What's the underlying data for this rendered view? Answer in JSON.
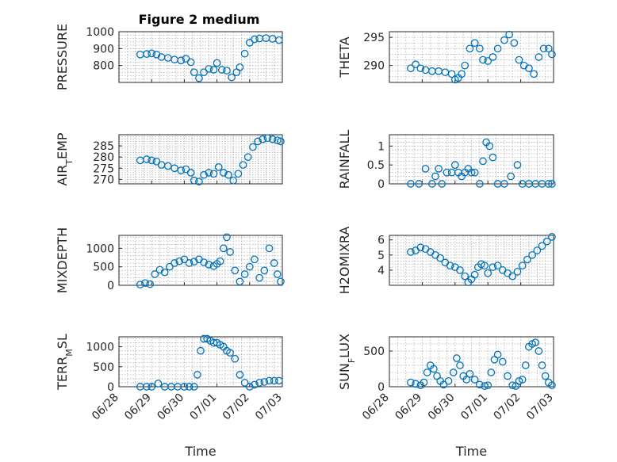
{
  "figure_title": "Figure 2 medium",
  "shared_xlabel": "Time",
  "x_ticks": [
    "06/28",
    "06/29",
    "06/30",
    "07/01",
    "07/02",
    "07/03"
  ],
  "marker_color": "#0072BD",
  "chart_data": [
    {
      "type": "scatter",
      "ylabel": "PRESSURE",
      "title": "Figure 2 medium",
      "xlim": [
        0,
        5
      ],
      "ylim": [
        700,
        1000
      ],
      "yticks": [
        800,
        900,
        1000
      ],
      "x": [
        0.65,
        0.85,
        1.0,
        1.15,
        1.3,
        1.5,
        1.7,
        1.9,
        2.05,
        2.2,
        2.3,
        2.45,
        2.6,
        2.75,
        2.9,
        3.0,
        3.15,
        3.3,
        3.45,
        3.6,
        3.7,
        3.85,
        4.0,
        4.15,
        4.3,
        4.5,
        4.7,
        4.9
      ],
      "y": [
        865,
        868,
        872,
        865,
        850,
        845,
        835,
        830,
        840,
        820,
        760,
        725,
        760,
        780,
        775,
        815,
        775,
        770,
        730,
        760,
        790,
        870,
        935,
        955,
        960,
        962,
        958,
        950
      ]
    },
    {
      "type": "scatter",
      "ylabel": "THETA",
      "xlim": [
        0,
        5
      ],
      "ylim": [
        287,
        296
      ],
      "yticks": [
        290,
        295
      ],
      "x": [
        0.65,
        0.8,
        0.95,
        1.1,
        1.3,
        1.5,
        1.7,
        1.9,
        2.0,
        2.1,
        2.2,
        2.3,
        2.45,
        2.6,
        2.75,
        2.85,
        3.0,
        3.15,
        3.3,
        3.5,
        3.65,
        3.8,
        3.95,
        4.1,
        4.25,
        4.4,
        4.55,
        4.7,
        4.85,
        4.95
      ],
      "y": [
        289.5,
        290.2,
        289.5,
        289.2,
        289.0,
        289.0,
        288.8,
        288.5,
        287.5,
        287.8,
        288.5,
        290.0,
        293.0,
        294.0,
        293.0,
        291.0,
        290.8,
        291.5,
        293.0,
        294.5,
        295.5,
        294.0,
        291.0,
        290.0,
        289.5,
        288.5,
        291.5,
        293.0,
        293.0,
        292.0
      ]
    },
    {
      "type": "scatter",
      "ylabel": "AIR_TEMP",
      "xlim": [
        0,
        5
      ],
      "ylim": [
        268,
        290
      ],
      "yticks": [
        270,
        275,
        280,
        285
      ],
      "x": [
        0.65,
        0.85,
        1.0,
        1.15,
        1.3,
        1.5,
        1.7,
        1.9,
        2.05,
        2.2,
        2.3,
        2.45,
        2.6,
        2.75,
        2.9,
        3.05,
        3.2,
        3.35,
        3.5,
        3.65,
        3.8,
        3.95,
        4.1,
        4.25,
        4.4,
        4.55,
        4.7,
        4.85,
        4.95
      ],
      "y": [
        278.5,
        279.0,
        278.5,
        278.0,
        276.5,
        276.0,
        275.0,
        274.0,
        274.5,
        273.0,
        269.5,
        269.0,
        272.0,
        273.0,
        272.5,
        275.5,
        273.0,
        272.0,
        269.5,
        272.5,
        276.5,
        280.0,
        284.5,
        287.0,
        288.0,
        288.5,
        288.0,
        287.5,
        287.0
      ]
    },
    {
      "type": "scatter",
      "ylabel": "RAINFALL",
      "xlim": [
        0,
        5
      ],
      "ylim": [
        0,
        1.3
      ],
      "yticks": [
        0,
        0.5,
        1
      ],
      "x": [
        0.65,
        0.9,
        1.1,
        1.3,
        1.4,
        1.5,
        1.6,
        1.75,
        1.9,
        2.0,
        2.1,
        2.2,
        2.3,
        2.4,
        2.5,
        2.6,
        2.75,
        2.85,
        2.95,
        3.05,
        3.15,
        3.3,
        3.5,
        3.7,
        3.9,
        4.05,
        4.25,
        4.45,
        4.65,
        4.85,
        4.95
      ],
      "y": [
        0,
        0,
        0.4,
        0,
        0.2,
        0.4,
        0,
        0.3,
        0.3,
        0.5,
        0.3,
        0.2,
        0.3,
        0.4,
        0.3,
        0.3,
        0,
        0.6,
        1.1,
        1.0,
        0.7,
        0,
        0,
        0.2,
        0.5,
        0,
        0,
        0,
        0,
        0,
        0
      ]
    },
    {
      "type": "scatter",
      "ylabel": "MIXDEPTH",
      "xlim": [
        0,
        5
      ],
      "ylim": [
        0,
        1350
      ],
      "yticks": [
        0,
        500,
        1000
      ],
      "x": [
        0.65,
        0.8,
        0.95,
        1.1,
        1.25,
        1.4,
        1.55,
        1.7,
        1.85,
        2.0,
        2.15,
        2.3,
        2.45,
        2.6,
        2.75,
        2.9,
        3.0,
        3.1,
        3.2,
        3.3,
        3.4,
        3.55,
        3.7,
        3.85,
        4.0,
        4.15,
        4.3,
        4.45,
        4.6,
        4.75,
        4.85,
        4.95
      ],
      "y": [
        20,
        60,
        30,
        300,
        420,
        350,
        500,
        600,
        650,
        700,
        600,
        640,
        700,
        620,
        560,
        520,
        580,
        650,
        1000,
        1300,
        900,
        400,
        100,
        300,
        500,
        700,
        200,
        400,
        1000,
        600,
        300,
        100
      ]
    },
    {
      "type": "scatter",
      "ylabel": "H2OMIXRA",
      "xlim": [
        0,
        5
      ],
      "ylim": [
        3,
        6.3
      ],
      "yticks": [
        4,
        5,
        6
      ],
      "x": [
        0.65,
        0.8,
        0.95,
        1.1,
        1.25,
        1.4,
        1.55,
        1.7,
        1.85,
        2.0,
        2.15,
        2.3,
        2.4,
        2.5,
        2.6,
        2.7,
        2.8,
        2.9,
        3.0,
        3.15,
        3.3,
        3.45,
        3.6,
        3.75,
        3.9,
        4.05,
        4.2,
        4.35,
        4.5,
        4.65,
        4.8,
        4.95
      ],
      "y": [
        5.2,
        5.3,
        5.5,
        5.4,
        5.2,
        5.0,
        4.8,
        4.5,
        4.3,
        4.2,
        4.0,
        3.6,
        3.2,
        3.4,
        3.7,
        4.2,
        4.4,
        4.3,
        3.8,
        4.2,
        4.3,
        4.0,
        3.8,
        3.6,
        3.9,
        4.3,
        4.7,
        5.0,
        5.3,
        5.6,
        5.9,
        6.2
      ]
    },
    {
      "type": "scatter",
      "ylabel": "TERR_MSL",
      "xlim": [
        0,
        5
      ],
      "ylim": [
        0,
        1250
      ],
      "yticks": [
        0,
        500,
        1000
      ],
      "x": [
        0.65,
        0.85,
        1.0,
        1.2,
        1.4,
        1.6,
        1.8,
        2.0,
        2.15,
        2.3,
        2.4,
        2.5,
        2.6,
        2.7,
        2.8,
        2.9,
        3.0,
        3.1,
        3.2,
        3.3,
        3.4,
        3.55,
        3.7,
        3.85,
        4.0,
        4.15,
        4.3,
        4.45,
        4.6,
        4.75,
        4.9
      ],
      "y": [
        0,
        0,
        0,
        80,
        0,
        0,
        0,
        0,
        0,
        0,
        300,
        900,
        1200,
        1200,
        1150,
        1100,
        1100,
        1050,
        1000,
        900,
        850,
        700,
        300,
        100,
        0,
        50,
        100,
        120,
        150,
        150,
        150
      ]
    },
    {
      "type": "scatter",
      "ylabel": "SUN_FLUX",
      "xlim": [
        0,
        5
      ],
      "ylim": [
        0,
        700
      ],
      "yticks": [
        0,
        500
      ],
      "x": [
        0.65,
        0.8,
        0.95,
        1.05,
        1.15,
        1.25,
        1.35,
        1.45,
        1.55,
        1.65,
        1.8,
        1.95,
        2.05,
        2.15,
        2.25,
        2.35,
        2.45,
        2.6,
        2.75,
        2.9,
        3.0,
        3.1,
        3.2,
        3.3,
        3.45,
        3.6,
        3.75,
        3.85,
        3.95,
        4.05,
        4.15,
        4.25,
        4.35,
        4.45,
        4.55,
        4.65,
        4.75,
        4.85,
        4.95
      ],
      "y": [
        60,
        40,
        20,
        60,
        200,
        300,
        250,
        150,
        80,
        30,
        80,
        200,
        400,
        300,
        150,
        100,
        180,
        100,
        30,
        10,
        20,
        200,
        380,
        450,
        350,
        150,
        20,
        10,
        80,
        100,
        300,
        560,
        600,
        620,
        500,
        300,
        150,
        60,
        20
      ]
    }
  ]
}
